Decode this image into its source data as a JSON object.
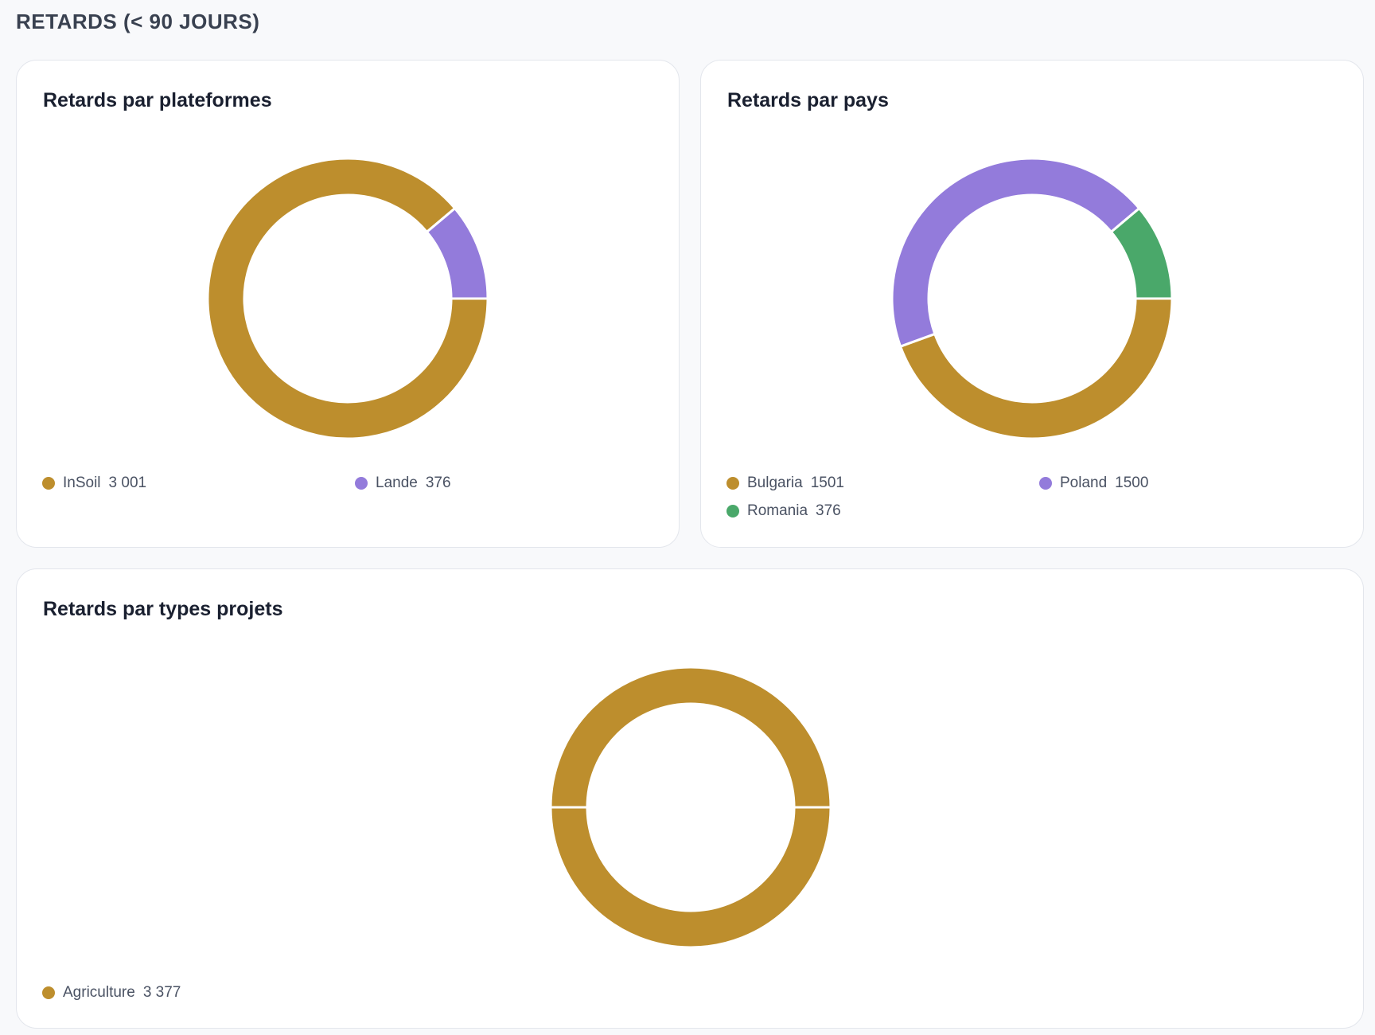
{
  "header": {
    "title": "RETARDS (< 90 JOURS)"
  },
  "colors": {
    "gold": "#bd8e2d",
    "purple": "#937bdb",
    "green": "#4aa86a"
  },
  "chart_data": [
    {
      "id": "platforms",
      "type": "pie",
      "donut": true,
      "title": "Retards par plateformes",
      "legend_position": "bottom",
      "slices": [
        {
          "label": "InSoil",
          "value": 3001,
          "display": "3 001",
          "color": "#bd8e2d"
        },
        {
          "label": "Lande",
          "value": 376,
          "display": "376",
          "color": "#937bdb"
        }
      ]
    },
    {
      "id": "countries",
      "type": "pie",
      "donut": true,
      "title": "Retards par pays",
      "legend_position": "bottom",
      "slices": [
        {
          "label": "Bulgaria",
          "value": 1501,
          "display": "1501",
          "color": "#bd8e2d"
        },
        {
          "label": "Poland",
          "value": 1500,
          "display": "1500",
          "color": "#937bdb"
        },
        {
          "label": "Romania",
          "value": 376,
          "display": "376",
          "color": "#4aa86a"
        }
      ]
    },
    {
      "id": "types",
      "type": "pie",
      "donut": true,
      "title": "Retards par types projets",
      "legend_position": "bottom",
      "slices": [
        {
          "label": "Agriculture",
          "value": 3377,
          "display": "3 377",
          "color": "#bd8e2d"
        }
      ]
    }
  ]
}
